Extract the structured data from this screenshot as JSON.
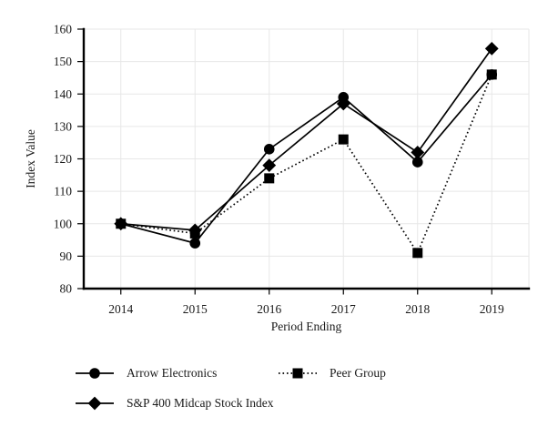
{
  "chart_data": {
    "type": "line",
    "x_categories": [
      "2014",
      "2015",
      "2016",
      "2017",
      "2018",
      "2019"
    ],
    "series": [
      {
        "name": "Arrow Electronics",
        "marker": "circle",
        "line_style": "solid",
        "values": [
          100,
          94,
          123,
          139,
          119,
          146
        ]
      },
      {
        "name": "Peer Group",
        "marker": "square",
        "line_style": "dotted",
        "values": [
          100,
          97,
          114,
          126,
          91,
          146
        ]
      },
      {
        "name": "S&P 400 Midcap Stock Index",
        "marker": "diamond",
        "line_style": "solid",
        "values": [
          100,
          98,
          118,
          137,
          122,
          154
        ]
      }
    ],
    "xlabel": "Period Ending",
    "ylabel": "Index Value",
    "ylim": [
      80,
      160
    ],
    "ytick_step": 10,
    "yticks": [
      "80",
      "90",
      "100",
      "110",
      "120",
      "130",
      "140",
      "150",
      "160"
    ],
    "grid": true,
    "legend_position": "bottom",
    "colors": {
      "series": "#000000",
      "grid": "#e7e7e7",
      "axis": "#000000",
      "text": "#1a1a1a",
      "background": "#ffffff"
    }
  }
}
